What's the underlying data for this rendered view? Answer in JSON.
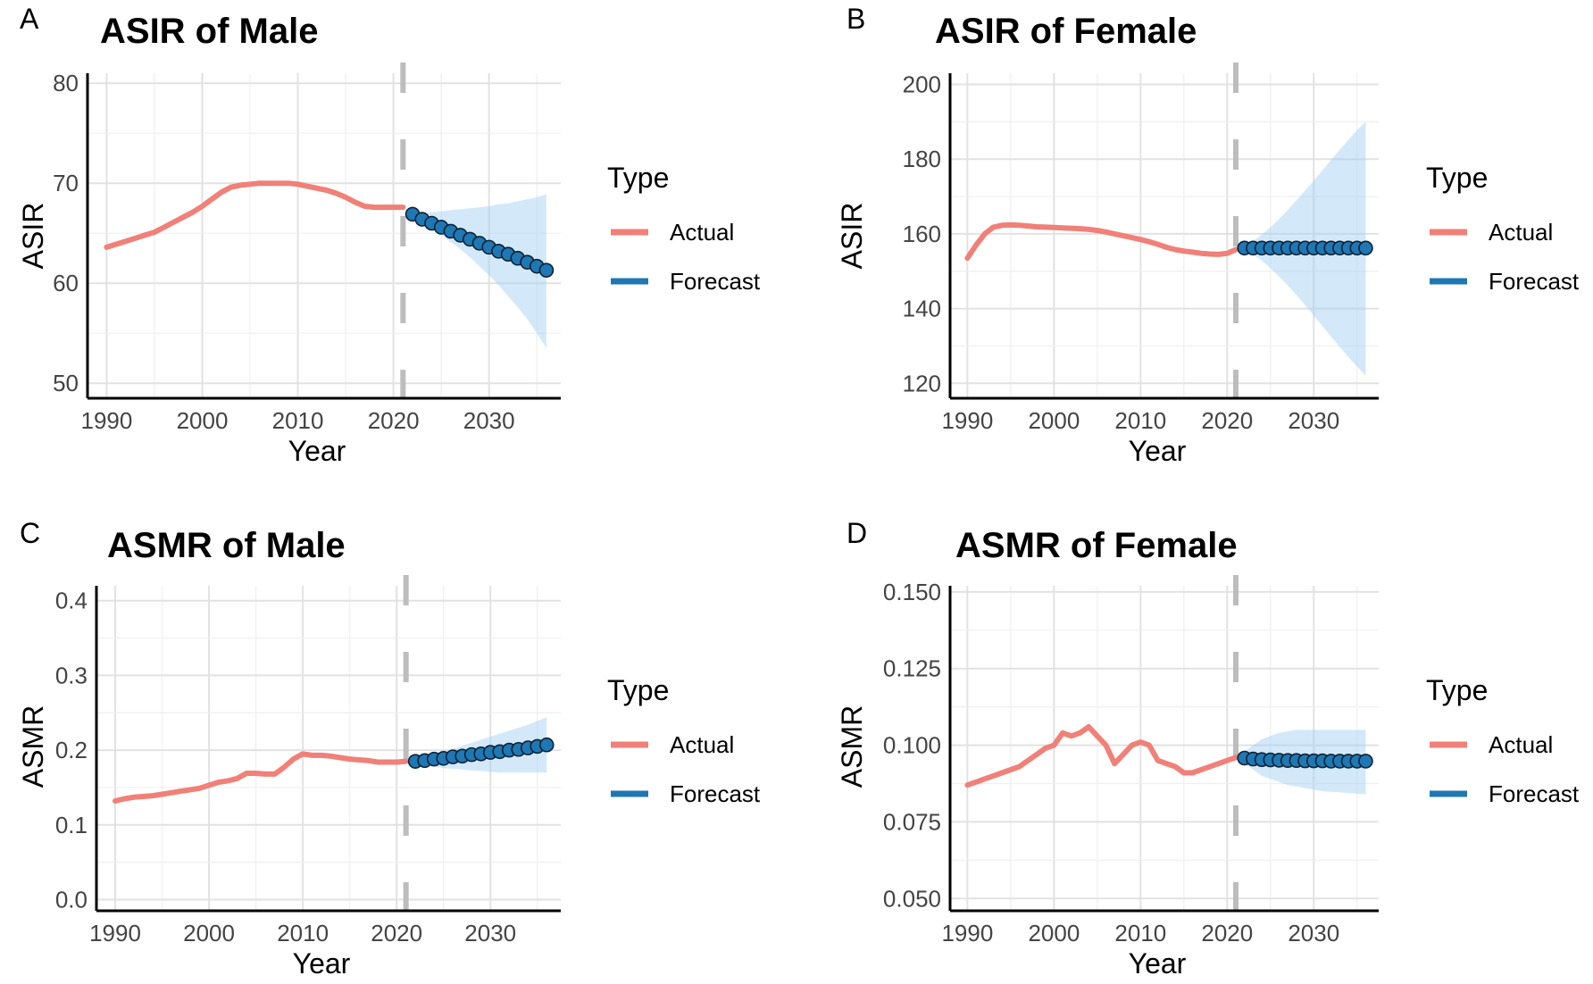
{
  "chart_data": [
    {
      "panel_label": "A",
      "type": "line",
      "title": "ASIR of Male",
      "xlabel": "Year",
      "ylabel": "ASIR",
      "xlim": [
        1988,
        2037.5
      ],
      "ylim": [
        48.5,
        81
      ],
      "xticks": [
        1990,
        2000,
        2010,
        2020,
        2030
      ],
      "yticks": [
        50,
        60,
        70,
        80
      ],
      "ytick_labels": [
        "50",
        "60",
        "70",
        "80"
      ],
      "cutoff_year": 2021,
      "legend": {
        "title": "Type",
        "position": "right",
        "entries": [
          "Actual",
          "Forecast"
        ]
      },
      "series": [
        {
          "name": "Actual",
          "color": "#F08078",
          "x": [
            1990,
            1991,
            1992,
            1993,
            1994,
            1995,
            1996,
            1997,
            1998,
            1999,
            2000,
            2001,
            2002,
            2003,
            2004,
            2005,
            2006,
            2007,
            2008,
            2009,
            2010,
            2011,
            2012,
            2013,
            2014,
            2015,
            2016,
            2017,
            2018,
            2019,
            2020,
            2021
          ],
          "y": [
            63.6,
            63.9,
            64.2,
            64.5,
            64.8,
            65.1,
            65.6,
            66.1,
            66.6,
            67.1,
            67.7,
            68.4,
            69.1,
            69.6,
            69.8,
            69.9,
            70.0,
            70.0,
            70.0,
            70.0,
            69.9,
            69.7,
            69.5,
            69.3,
            69.0,
            68.6,
            68.1,
            67.7,
            67.6,
            67.6,
            67.6,
            67.6
          ]
        },
        {
          "name": "Forecast",
          "color": "#1F77B4",
          "x": [
            2022,
            2023,
            2024,
            2025,
            2026,
            2027,
            2028,
            2029,
            2030,
            2031,
            2032,
            2033,
            2034,
            2035,
            2036
          ],
          "y": [
            66.9,
            66.4,
            66.0,
            65.6,
            65.2,
            64.8,
            64.4,
            64.0,
            63.6,
            63.2,
            62.9,
            62.5,
            62.1,
            61.7,
            61.3
          ],
          "lower": [
            66.6,
            66.0,
            65.4,
            64.8,
            64.1,
            63.4,
            62.6,
            61.7,
            60.8,
            59.8,
            58.7,
            57.6,
            56.4,
            55.0,
            53.5
          ],
          "upper": [
            67.0,
            67.0,
            67.1,
            67.2,
            67.3,
            67.4,
            67.5,
            67.6,
            67.7,
            67.9,
            68.0,
            68.2,
            68.4,
            68.6,
            68.9
          ]
        }
      ]
    },
    {
      "panel_label": "B",
      "type": "line",
      "title": "ASIR of Female",
      "xlabel": "Year",
      "ylabel": "ASIR",
      "xlim": [
        1988,
        2037.5
      ],
      "ylim": [
        116,
        203
      ],
      "xticks": [
        1990,
        2000,
        2010,
        2020,
        2030
      ],
      "yticks": [
        120,
        140,
        160,
        180,
        200
      ],
      "ytick_labels": [
        "120",
        "140",
        "160",
        "180",
        "200"
      ],
      "cutoff_year": 2021,
      "legend": {
        "title": "Type",
        "position": "right",
        "entries": [
          "Actual",
          "Forecast"
        ]
      },
      "series": [
        {
          "name": "Actual",
          "color": "#F08078",
          "x": [
            1990,
            1991,
            1992,
            1993,
            1994,
            1995,
            1996,
            1997,
            1998,
            1999,
            2000,
            2001,
            2002,
            2003,
            2004,
            2005,
            2006,
            2007,
            2008,
            2009,
            2010,
            2011,
            2012,
            2013,
            2014,
            2015,
            2016,
            2017,
            2018,
            2019,
            2020,
            2021
          ],
          "y": [
            153.5,
            157.0,
            160.0,
            161.8,
            162.3,
            162.4,
            162.3,
            162.1,
            161.9,
            161.8,
            161.7,
            161.6,
            161.5,
            161.4,
            161.2,
            160.9,
            160.5,
            160.0,
            159.5,
            159.0,
            158.5,
            157.9,
            157.2,
            156.4,
            155.8,
            155.4,
            155.1,
            154.8,
            154.6,
            154.5,
            154.8,
            155.8
          ]
        },
        {
          "name": "Forecast",
          "color": "#1F77B4",
          "x": [
            2022,
            2023,
            2024,
            2025,
            2026,
            2027,
            2028,
            2029,
            2030,
            2031,
            2032,
            2033,
            2034,
            2035,
            2036
          ],
          "y": [
            156.2,
            156.2,
            156.2,
            156.2,
            156.2,
            156.2,
            156.2,
            156.2,
            156.2,
            156.2,
            156.2,
            156.2,
            156.2,
            156.2,
            156.2
          ],
          "lower": [
            155.8,
            154.5,
            152.8,
            150.8,
            148.6,
            146.2,
            143.6,
            140.9,
            138.1,
            135.3,
            132.5,
            129.7,
            127.0,
            124.5,
            122.0
          ],
          "upper": [
            156.6,
            158.0,
            159.8,
            161.8,
            164.0,
            166.4,
            169.0,
            171.6,
            174.3,
            177.0,
            179.8,
            182.5,
            185.2,
            187.8,
            190.0
          ]
        }
      ]
    },
    {
      "panel_label": "C",
      "type": "line",
      "title": "ASMR of Male",
      "xlabel": "Year",
      "ylabel": "ASMR",
      "xlim": [
        1988,
        2037.5
      ],
      "ylim": [
        -0.015,
        0.42
      ],
      "xticks": [
        1990,
        2000,
        2010,
        2020,
        2030
      ],
      "yticks": [
        0.0,
        0.1,
        0.2,
        0.3,
        0.4
      ],
      "ytick_labels": [
        "0.0",
        "0.1",
        "0.2",
        "0.3",
        "0.4"
      ],
      "cutoff_year": 2021,
      "legend": {
        "title": "Type",
        "position": "right",
        "entries": [
          "Actual",
          "Forecast"
        ]
      },
      "series": [
        {
          "name": "Actual",
          "color": "#F08078",
          "x": [
            1990,
            1991,
            1992,
            1993,
            1994,
            1995,
            1996,
            1997,
            1998,
            1999,
            2000,
            2001,
            2002,
            2003,
            2004,
            2005,
            2006,
            2007,
            2008,
            2009,
            2010,
            2011,
            2012,
            2013,
            2014,
            2015,
            2016,
            2017,
            2018,
            2019,
            2020,
            2021
          ],
          "y": [
            0.132,
            0.135,
            0.137,
            0.138,
            0.139,
            0.141,
            0.143,
            0.145,
            0.147,
            0.149,
            0.153,
            0.157,
            0.159,
            0.162,
            0.169,
            0.169,
            0.168,
            0.168,
            0.177,
            0.188,
            0.195,
            0.193,
            0.193,
            0.192,
            0.19,
            0.188,
            0.187,
            0.186,
            0.184,
            0.184,
            0.184,
            0.185
          ]
        },
        {
          "name": "Forecast",
          "color": "#1F77B4",
          "x": [
            2022,
            2023,
            2024,
            2025,
            2026,
            2027,
            2028,
            2029,
            2030,
            2031,
            2032,
            2033,
            2034,
            2035,
            2036
          ],
          "y": [
            0.185,
            0.186,
            0.188,
            0.189,
            0.191,
            0.192,
            0.194,
            0.195,
            0.197,
            0.198,
            0.2,
            0.201,
            0.203,
            0.205,
            0.207
          ],
          "lower": [
            0.182,
            0.18,
            0.178,
            0.176,
            0.175,
            0.174,
            0.173,
            0.172,
            0.171,
            0.17,
            0.17,
            0.17,
            0.17,
            0.17,
            0.17
          ],
          "upper": [
            0.187,
            0.19,
            0.194,
            0.198,
            0.202,
            0.206,
            0.21,
            0.214,
            0.218,
            0.222,
            0.226,
            0.23,
            0.234,
            0.239,
            0.244
          ]
        }
      ]
    },
    {
      "panel_label": "D",
      "type": "line",
      "title": "ASMR of Female",
      "xlabel": "Year",
      "ylabel": "ASMR",
      "xlim": [
        1988,
        2037.5
      ],
      "ylim": [
        0.046,
        0.152
      ],
      "xticks": [
        1990,
        2000,
        2010,
        2020,
        2030
      ],
      "yticks": [
        0.05,
        0.075,
        0.1,
        0.125,
        0.15
      ],
      "ytick_labels": [
        "0.050",
        "0.075",
        "0.100",
        "0.125",
        "0.150"
      ],
      "cutoff_year": 2021,
      "legend": {
        "title": "Type",
        "position": "right",
        "entries": [
          "Actual",
          "Forecast"
        ]
      },
      "series": [
        {
          "name": "Actual",
          "color": "#F08078",
          "x": [
            1990,
            1991,
            1992,
            1993,
            1994,
            1995,
            1996,
            1997,
            1998,
            1999,
            2000,
            2001,
            2002,
            2003,
            2004,
            2005,
            2006,
            2007,
            2008,
            2009,
            2010,
            2011,
            2012,
            2013,
            2014,
            2015,
            2016,
            2017,
            2018,
            2019,
            2020,
            2021
          ],
          "y": [
            0.087,
            0.088,
            0.089,
            0.09,
            0.091,
            0.092,
            0.093,
            0.095,
            0.097,
            0.099,
            0.1,
            0.104,
            0.103,
            0.104,
            0.106,
            0.103,
            0.1,
            0.094,
            0.097,
            0.1,
            0.101,
            0.1,
            0.095,
            0.094,
            0.093,
            0.091,
            0.091,
            0.092,
            0.093,
            0.094,
            0.095,
            0.096
          ]
        },
        {
          "name": "Forecast",
          "color": "#1F77B4",
          "x": [
            2022,
            2023,
            2024,
            2025,
            2026,
            2027,
            2028,
            2029,
            2030,
            2031,
            2032,
            2033,
            2034,
            2035,
            2036
          ],
          "y": [
            0.0958,
            0.0955,
            0.0953,
            0.0952,
            0.0951,
            0.095,
            0.095,
            0.0949,
            0.0949,
            0.0949,
            0.0948,
            0.0948,
            0.0948,
            0.0948,
            0.0948
          ],
          "lower": [
            0.094,
            0.092,
            0.09,
            0.089,
            0.088,
            0.087,
            0.0865,
            0.086,
            0.0855,
            0.085,
            0.0848,
            0.0846,
            0.0844,
            0.0842,
            0.084
          ],
          "upper": [
            0.098,
            0.1,
            0.102,
            0.103,
            0.104,
            0.1045,
            0.105,
            0.105,
            0.105,
            0.105,
            0.105,
            0.105,
            0.105,
            0.105,
            0.105
          ]
        }
      ]
    }
  ]
}
